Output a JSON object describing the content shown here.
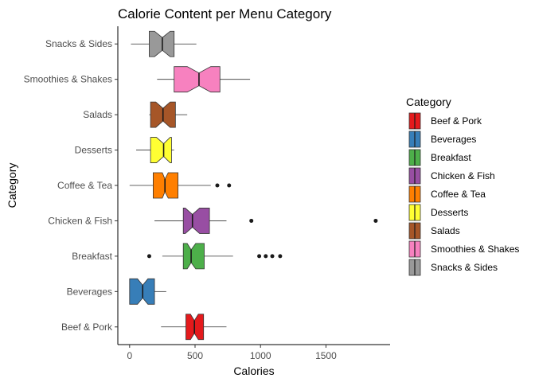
{
  "chart_data": {
    "type": "boxplot",
    "orientation": "horizontal",
    "title": "Calorie Content per Menu Category",
    "xlabel": "Calories",
    "ylabel": "Category",
    "xlim": [
      -90,
      1990
    ],
    "x_ticks": [
      0,
      500,
      1000,
      1500
    ],
    "x_tick_labels": [
      "0",
      "500",
      "1000",
      "1500"
    ],
    "grid": false,
    "notched": true,
    "legend": {
      "title": "Category",
      "position": "right",
      "entries": [
        "Beef & Pork",
        "Beverages",
        "Breakfast",
        "Chicken & Fish",
        "Coffee & Tea",
        "Desserts",
        "Salads",
        "Smoothies & Shakes",
        "Snacks & Sides"
      ]
    },
    "categories": [
      "Beef & Pork",
      "Beverages",
      "Breakfast",
      "Chicken & Fish",
      "Coffee & Tea",
      "Desserts",
      "Salads",
      "Smoothies & Shakes",
      "Snacks & Sides"
    ],
    "series": [
      {
        "category": "Beef & Pork",
        "color": "#E41A1C",
        "whisker_low": 240,
        "q1": 430,
        "median": 495,
        "q3": 565,
        "whisker_high": 740,
        "notch_low": 465,
        "notch_high": 525,
        "outliers": []
      },
      {
        "category": "Beverages",
        "color": "#377EB8",
        "whisker_low": 0,
        "q1": 0,
        "median": 100,
        "q3": 190,
        "whisker_high": 280,
        "notch_low": 60,
        "notch_high": 140,
        "outliers": []
      },
      {
        "category": "Breakfast",
        "color": "#4DAF4A",
        "whisker_low": 250,
        "q1": 410,
        "median": 470,
        "q3": 570,
        "whisker_high": 790,
        "notch_low": 440,
        "notch_high": 505,
        "outliers": [
          150,
          990,
          1040,
          1090,
          1150
        ]
      },
      {
        "category": "Chicken & Fish",
        "color": "#984EA3",
        "whisker_low": 190,
        "q1": 410,
        "median": 480,
        "q3": 610,
        "whisker_high": 740,
        "notch_low": 425,
        "notch_high": 535,
        "outliers": [
          930,
          1880
        ]
      },
      {
        "category": "Coffee & Tea",
        "color": "#FF7F00",
        "whisker_low": 0,
        "q1": 180,
        "median": 270,
        "q3": 370,
        "whisker_high": 620,
        "notch_low": 250,
        "notch_high": 295,
        "outliers": [
          670,
          760
        ]
      },
      {
        "category": "Desserts",
        "color": "#FFFF33",
        "whisker_low": 50,
        "q1": 160,
        "median": 260,
        "q3": 320,
        "whisker_high": 340,
        "notch_low": 205,
        "notch_high": 310,
        "outliers": []
      },
      {
        "category": "Salads",
        "color": "#A65628",
        "whisker_low": 150,
        "q1": 160,
        "median": 255,
        "q3": 350,
        "whisker_high": 440,
        "notch_low": 200,
        "notch_high": 310,
        "outliers": []
      },
      {
        "category": "Smoothies & Shakes",
        "color": "#F781BF",
        "whisker_low": 210,
        "q1": 340,
        "median": 530,
        "q3": 690,
        "whisker_high": 920,
        "notch_low": 440,
        "notch_high": 620,
        "outliers": []
      },
      {
        "category": "Snacks & Sides",
        "color": "#999999",
        "whisker_low": 10,
        "q1": 150,
        "median": 250,
        "q3": 340,
        "whisker_high": 510,
        "notch_low": 190,
        "notch_high": 310,
        "outliers": []
      }
    ]
  }
}
